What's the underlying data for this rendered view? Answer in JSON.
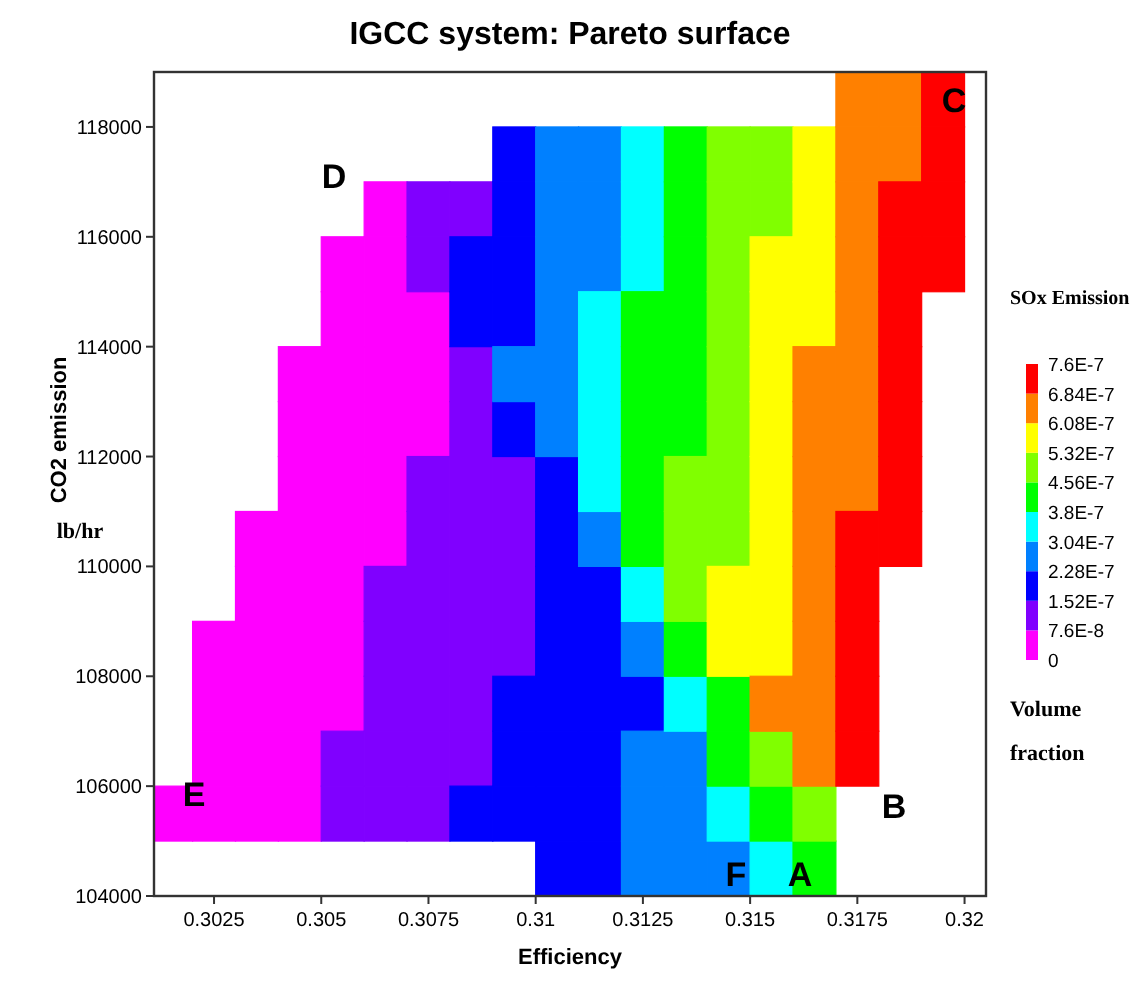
{
  "chart_data": {
    "type": "scatter",
    "title": "IGCC system: Pareto surface",
    "xlabel": "Efficiency",
    "ylabel": "CO2 emission",
    "clabel": "SOx Emission",
    "marker": "square",
    "xlim": [
      0.3011,
      0.3205
    ],
    "ylim": [
      104000,
      119000
    ],
    "xticks": [
      0.3025,
      0.305,
      0.3075,
      0.31,
      0.3125,
      0.315,
      0.3175,
      0.32
    ],
    "yticks": [
      104000,
      106000,
      108000,
      110000,
      112000,
      114000,
      116000,
      118000
    ],
    "clim": [
      0,
      7.6e-07
    ],
    "cticks": [
      0,
      {
        "value": 7.6e-08,
        "label": "7.6E-8"
      },
      {
        "value": 1.52e-07,
        "label": "1.52E-7"
      },
      {
        "value": 2.28e-07,
        "label": "2.28E-7"
      },
      {
        "value": 3.04e-07,
        "label": "3.04E-7"
      },
      {
        "value": 3.8e-07,
        "label": "3.8E-7"
      },
      {
        "value": 4.56e-07,
        "label": "4.56E-7"
      },
      {
        "value": 5.32e-07,
        "label": "5.32E-7"
      },
      {
        "value": 6.08e-07,
        "label": "6.08E-7"
      },
      {
        "value": 6.84e-07,
        "label": "6.84E-7"
      },
      {
        "value": 7.6e-07,
        "label": "7.6E-7"
      }
    ],
    "annotations": [
      "lb/hr",
      "Volume fraction",
      "A",
      "B",
      "C",
      "D",
      "E",
      "F"
    ],
    "series": [
      {
        "color": "#ff00ff",
        "x": [
          0.3015,
          0.3025,
          0.3035,
          0.3045,
          0.3025,
          0.3035,
          0.3045,
          0.3025,
          0.3035,
          0.3045,
          0.3055,
          0.3025,
          0.3035,
          0.3045,
          0.3055,
          0.3035,
          0.3045,
          0.3055,
          0.3035,
          0.3045,
          0.3055,
          0.3065,
          0.3045,
          0.3055,
          0.3065,
          0.3045,
          0.3055,
          0.3065,
          0.3075,
          0.3045,
          0.3055,
          0.3065,
          0.3075,
          0.3055,
          0.3065,
          0.3075,
          0.3055,
          0.3065,
          0.3065
        ],
        "values": [
          105500,
          105500,
          105500,
          105500,
          106500,
          106500,
          106500,
          107500,
          107500,
          107500,
          107500,
          108500,
          108500,
          108500,
          108500,
          109500,
          109500,
          109500,
          110500,
          110500,
          110500,
          110500,
          111500,
          111500,
          111500,
          112500,
          112500,
          112500,
          112500,
          113500,
          113500,
          113500,
          113500,
          114500,
          114500,
          114500,
          115500,
          115500,
          116500
        ]
      },
      {
        "color": "#8000ff",
        "x": [
          0.3055,
          0.3065,
          0.3075,
          0.3055,
          0.3065,
          0.3075,
          0.3085,
          0.3065,
          0.3075,
          0.3085,
          0.3065,
          0.3075,
          0.3085,
          0.3095,
          0.3065,
          0.3075,
          0.3085,
          0.3095,
          0.3075,
          0.3085,
          0.3095,
          0.3075,
          0.3085,
          0.3095,
          0.3085,
          0.3085,
          0.3075,
          0.3075,
          0.3085
        ],
        "values": [
          105500,
          105500,
          105500,
          106500,
          106500,
          106500,
          106500,
          107500,
          107500,
          107500,
          108500,
          108500,
          108500,
          108500,
          109500,
          109500,
          109500,
          109500,
          110500,
          110500,
          110500,
          111500,
          111500,
          111500,
          112500,
          113500,
          115500,
          116500,
          116500
        ]
      },
      {
        "color": "#0000ff",
        "x": [
          0.3105,
          0.3115,
          0.3085,
          0.3095,
          0.3105,
          0.3115,
          0.3095,
          0.3105,
          0.3115,
          0.3095,
          0.3105,
          0.3115,
          0.3125,
          0.3105,
          0.3115,
          0.3105,
          0.3115,
          0.3105,
          0.3105,
          0.3095,
          0.3085,
          0.3095,
          0.3085,
          0.3095,
          0.3095,
          0.3095
        ],
        "values": [
          104500,
          104500,
          105500,
          105500,
          105500,
          105500,
          106500,
          106500,
          106500,
          107500,
          107500,
          107500,
          107500,
          108500,
          108500,
          109500,
          109500,
          110500,
          111500,
          112500,
          114500,
          114500,
          115500,
          115500,
          116500,
          117500
        ]
      },
      {
        "color": "#0080ff",
        "x": [
          0.3125,
          0.3135,
          0.3145,
          0.3125,
          0.3135,
          0.3125,
          0.3135,
          0.3125,
          0.3115,
          0.3105,
          0.3095,
          0.3105,
          0.3105,
          0.3105,
          0.3115,
          0.3105,
          0.3115,
          0.3105,
          0.3115
        ],
        "values": [
          104500,
          104500,
          104500,
          105500,
          105500,
          106500,
          106500,
          108500,
          110500,
          112500,
          113500,
          113500,
          114500,
          115500,
          115500,
          116500,
          116500,
          117500,
          117500
        ]
      },
      {
        "color": "#00ffff",
        "x": [
          0.3155,
          0.3145,
          0.3135,
          0.3125,
          0.3115,
          0.3115,
          0.3115,
          0.3115,
          0.3125,
          0.3125,
          0.3125
        ],
        "values": [
          104500,
          105500,
          107500,
          109500,
          111500,
          112500,
          113500,
          114500,
          115500,
          116500,
          117500
        ]
      },
      {
        "color": "#00ff00",
        "x": [
          0.3165,
          0.3155,
          0.3145,
          0.3145,
          0.3135,
          0.3125,
          0.3125,
          0.3125,
          0.3135,
          0.3125,
          0.3135,
          0.3125,
          0.3135,
          0.3135,
          0.3135,
          0.3135
        ],
        "values": [
          104500,
          105500,
          106500,
          107500,
          108500,
          110500,
          111500,
          112500,
          112500,
          113500,
          113500,
          114500,
          114500,
          115500,
          116500,
          117500
        ]
      },
      {
        "color": "#80ff00",
        "x": [
          0.3165,
          0.3155,
          0.3135,
          0.3135,
          0.3145,
          0.3135,
          0.3145,
          0.3145,
          0.3145,
          0.3145,
          0.3145,
          0.3145,
          0.3155,
          0.3145,
          0.3155
        ],
        "values": [
          105500,
          106500,
          109500,
          110500,
          110500,
          111500,
          111500,
          112500,
          113500,
          114500,
          115500,
          116500,
          116500,
          117500,
          117500
        ]
      },
      {
        "color": "#ffff00",
        "x": [
          0.3145,
          0.3155,
          0.3145,
          0.3155,
          0.3155,
          0.3155,
          0.3155,
          0.3155,
          0.3155,
          0.3165,
          0.3155,
          0.3165,
          0.3165,
          0.3165
        ],
        "values": [
          108500,
          108500,
          109500,
          109500,
          110500,
          111500,
          112500,
          113500,
          114500,
          114500,
          115500,
          115500,
          116500,
          117500
        ]
      },
      {
        "color": "#ff8000",
        "x": [
          0.3165,
          0.3155,
          0.3165,
          0.3165,
          0.3165,
          0.3165,
          0.3165,
          0.3175,
          0.3165,
          0.3175,
          0.3165,
          0.3175,
          0.3175,
          0.3175,
          0.3175,
          0.3175,
          0.3185,
          0.3175,
          0.3185
        ],
        "values": [
          106500,
          107500,
          107500,
          108500,
          109500,
          110500,
          111500,
          111500,
          112500,
          112500,
          113500,
          113500,
          114500,
          115500,
          116500,
          117500,
          117500,
          118500,
          118500
        ]
      },
      {
        "color": "#ff0000",
        "x": [
          0.3175,
          0.3175,
          0.3175,
          0.3175,
          0.3175,
          0.3185,
          0.3185,
          0.3185,
          0.3185,
          0.3185,
          0.3185,
          0.3195,
          0.3185,
          0.3195,
          0.3195,
          0.3195
        ],
        "values": [
          106500,
          107500,
          108500,
          109500,
          110500,
          110500,
          111500,
          112500,
          113500,
          114500,
          115500,
          115500,
          116500,
          116500,
          117500,
          118500
        ]
      }
    ]
  }
}
